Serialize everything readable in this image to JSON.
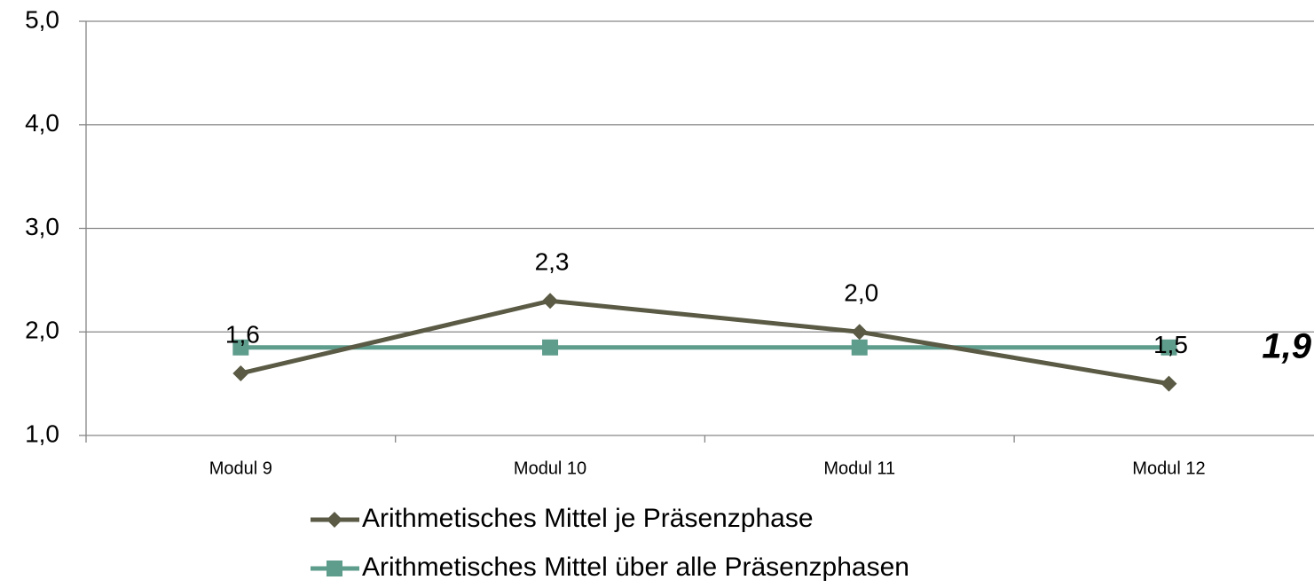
{
  "chart_data": {
    "type": "line",
    "categories": [
      "Modul 9",
      "Modul 10",
      "Modul 11",
      "Modul 12"
    ],
    "series": [
      {
        "name": "Arithmetisches Mittel je Präsenzphase",
        "color": "#5a5a45",
        "marker": "diamond",
        "values": [
          1.6,
          2.3,
          2.0,
          1.5
        ],
        "value_labels": [
          "1,6",
          "2,3",
          "2,0",
          "1,5"
        ]
      },
      {
        "name": "Arithmetisches Mittel über alle Präsenzphasen",
        "color": "#5e9c8c",
        "marker": "square",
        "values": [
          1.85,
          1.85,
          1.85,
          1.85
        ]
      }
    ],
    "annotations": [
      {
        "text": "1,9"
      }
    ],
    "ylim": [
      1,
      5
    ],
    "yticks": [
      {
        "value": 1,
        "label": "1,0"
      },
      {
        "value": 2,
        "label": "2,0"
      },
      {
        "value": 3,
        "label": "3,0"
      },
      {
        "value": 4,
        "label": "4,0"
      },
      {
        "value": 5,
        "label": "5,0"
      }
    ],
    "grid": true,
    "legend": "bottom"
  }
}
